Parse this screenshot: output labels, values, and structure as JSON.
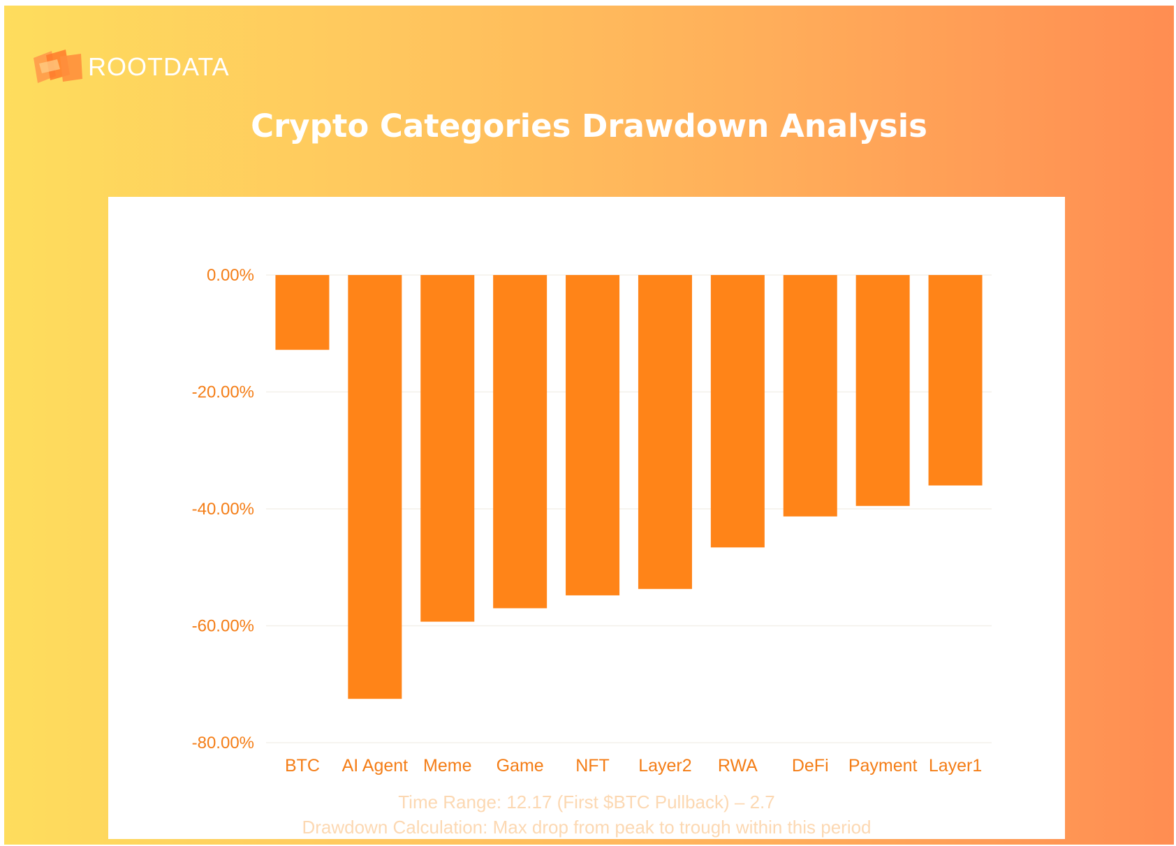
{
  "brand": {
    "logo_text": "ROOTDATA",
    "logo_icon": "rootdata-logo-icon"
  },
  "colors": {
    "bar": "#ff8418",
    "label": "#f47d16",
    "grid": "#f3f0ea",
    "title": "#ffffff",
    "footnote": "#fcd8b2"
  },
  "chart_data": {
    "type": "bar",
    "title": "Crypto Categories Drawdown Analysis",
    "categories": [
      "BTC",
      "AI Agent",
      "Meme",
      "Game",
      "NFT",
      "Layer2",
      "RWA",
      "DeFi",
      "Payment",
      "Layer1"
    ],
    "values": [
      -12.8,
      -72.5,
      -59.3,
      -57.0,
      -54.8,
      -53.7,
      -46.6,
      -41.3,
      -39.5,
      -36.0
    ],
    "value_format": "percent",
    "yticks": [
      0,
      -20,
      -40,
      -60,
      -80
    ],
    "ytick_labels": [
      "0.00%",
      "-20.00%",
      "-40.00%",
      "-60.00%",
      "-80.00%"
    ],
    "ylim": [
      -80,
      0
    ],
    "grid": true,
    "legend": "none",
    "xlabel": "",
    "ylabel": "",
    "footnotes": [
      "Time Range: 12.17 (First $BTC Pullback) – 2.7",
      "Drawdown Calculation: Max drop from peak to trough within this period"
    ]
  }
}
